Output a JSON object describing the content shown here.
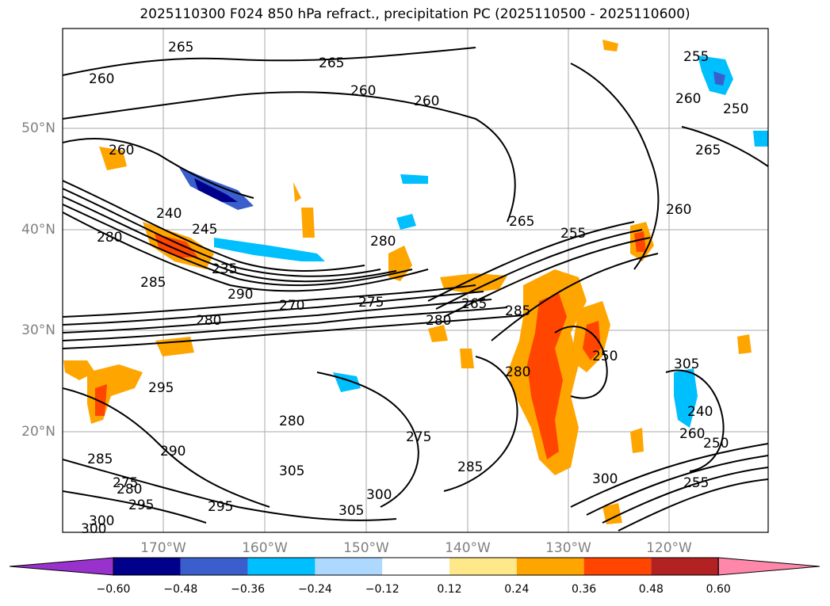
{
  "title": "2025110300 F024 850 hPa refract., precipitation PC (2025110500 - 2025110600)",
  "lat_labels": [
    "50°N",
    "40°N",
    "30°N",
    "20°N"
  ],
  "lon_labels": [
    "170°W",
    "160°W",
    "150°W",
    "140°W",
    "130°W",
    "120°W"
  ],
  "colorbar": {
    "ticks": [
      "−0.60",
      "−0.48",
      "−0.36",
      "−0.24",
      "−0.12",
      "0.12",
      "0.24",
      "0.36",
      "0.48",
      "0.60"
    ],
    "colors": [
      "#9932cc",
      "#00008b",
      "#3a5fcd",
      "#00bfff",
      "#add8ff",
      "#ffffff",
      "#ffe88a",
      "#ffa500",
      "#ff4500",
      "#b22222",
      "#ff88aa"
    ]
  },
  "contour_labels": [
    "265",
    "260",
    "265",
    "260",
    "255",
    "260",
    "250",
    "265",
    "260",
    "265",
    "240",
    "245",
    "280",
    "280",
    "235",
    "285",
    "290",
    "270",
    "275",
    "265",
    "280",
    "285",
    "280",
    "255",
    "260",
    "260",
    "275",
    "295",
    "290",
    "285",
    "280",
    "280",
    "305",
    "300",
    "305",
    "285",
    "295",
    "295",
    "300",
    "275",
    "300",
    "280",
    "300",
    "305",
    "240",
    "250",
    "260",
    "255",
    "250"
  ]
}
